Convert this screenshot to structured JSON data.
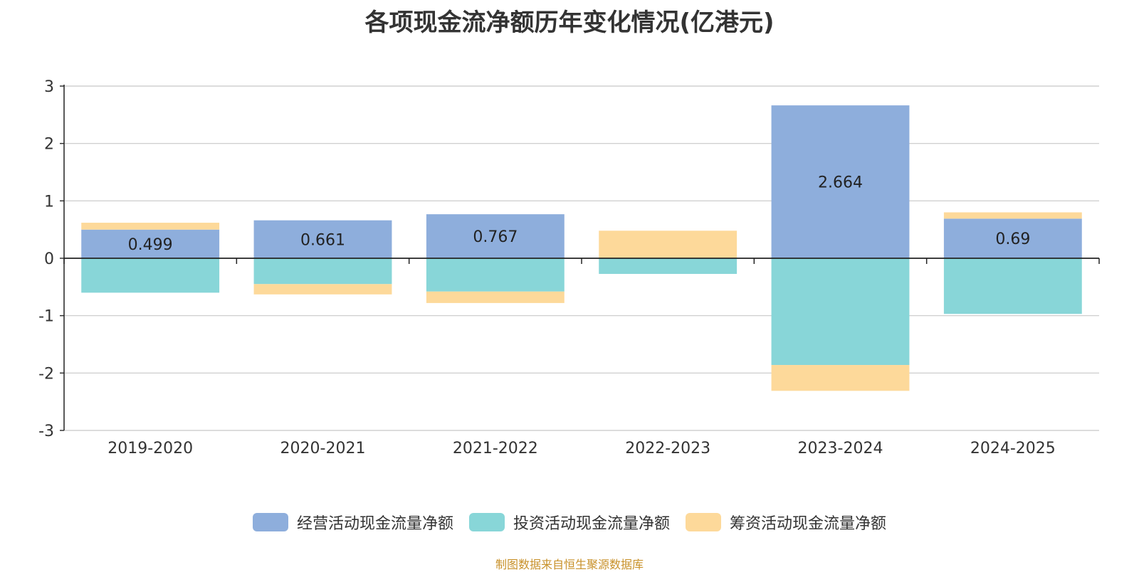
{
  "chart_data": {
    "type": "bar",
    "stacked": true,
    "title": "各项现金流净额历年变化情况(亿港元)",
    "categories": [
      "2019-2020",
      "2020-2021",
      "2021-2022",
      "2022-2023",
      "2023-2024",
      "2024-2025"
    ],
    "series": [
      {
        "name": "经营活动现金流量净额",
        "color": "#8eaedc",
        "values": [
          0.499,
          0.661,
          0.767,
          -0.003,
          2.664,
          0.69
        ],
        "labels": [
          "0.499",
          "0.661",
          "0.767",
          "",
          "2.664",
          "0.69"
        ]
      },
      {
        "name": "投资活动现金流量净额",
        "color": "#88d6d8",
        "values": [
          -0.6,
          -0.45,
          -0.58,
          -0.27,
          -1.86,
          -0.97
        ]
      },
      {
        "name": "筹资活动现金流量净额",
        "color": "#fdd99a",
        "values": [
          0.12,
          -0.18,
          -0.2,
          0.48,
          -0.45,
          0.11
        ]
      }
    ],
    "ylim": [
      -3,
      3
    ],
    "yticks": [
      -3,
      -2,
      -1,
      0,
      1,
      2,
      3
    ],
    "grid": true,
    "legend_position": "bottom"
  },
  "source_note": "制图数据来自恒生聚源数据库"
}
